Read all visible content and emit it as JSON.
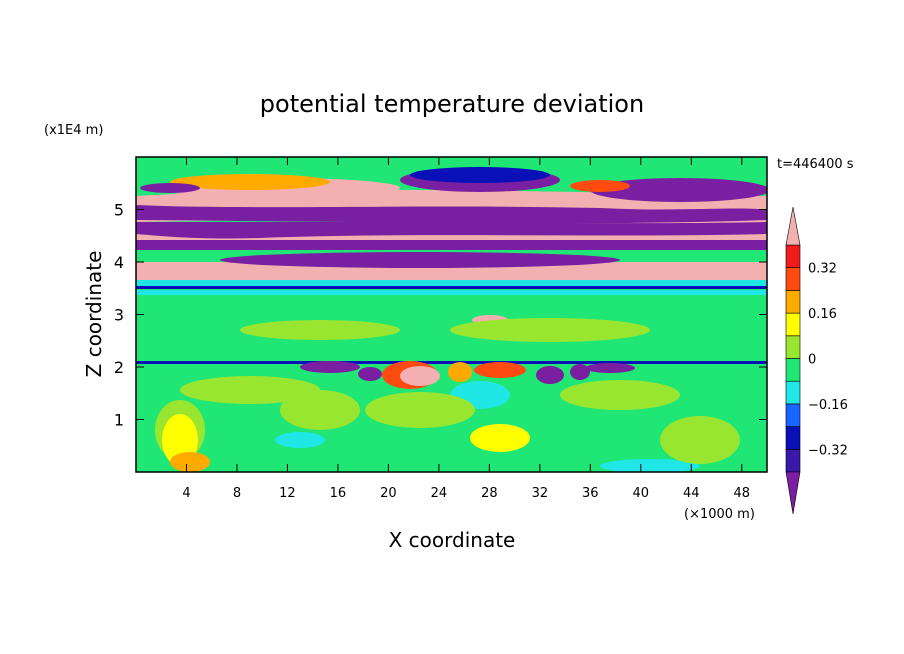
{
  "chart_data": {
    "type": "heatmap",
    "title": "potential temperature deviation",
    "xlabel": "X coordinate",
    "ylabel": "Z coordinate",
    "x_unit": "(×1000 m)",
    "y_unit": "(x1E4 m)",
    "time_label": "t=446400 s",
    "xlim": [
      0,
      50
    ],
    "ylim": [
      0,
      6
    ],
    "x_ticks": [
      "4",
      "8",
      "12",
      "16",
      "20",
      "24",
      "28",
      "32",
      "36",
      "40",
      "44",
      "48"
    ],
    "y_ticks": [
      "1",
      "2",
      "3",
      "4",
      "5"
    ],
    "colorbar": {
      "levels": [
        -0.4,
        -0.32,
        -0.24,
        -0.16,
        -0.08,
        0,
        0.08,
        0.16,
        0.24,
        0.32,
        0.4
      ],
      "labels": [
        "0.32",
        "0.16",
        "0",
        "-0.16",
        "-0.32"
      ],
      "colors": [
        "#7b1fa2",
        "#3a18a8",
        "#0a10b8",
        "#1a64ff",
        "#20e6e6",
        "#20e676",
        "#99e630",
        "#ffff00",
        "#ffaa00",
        "#ff4a10",
        "#f01d1d",
        "#f4b0b0"
      ]
    }
  }
}
